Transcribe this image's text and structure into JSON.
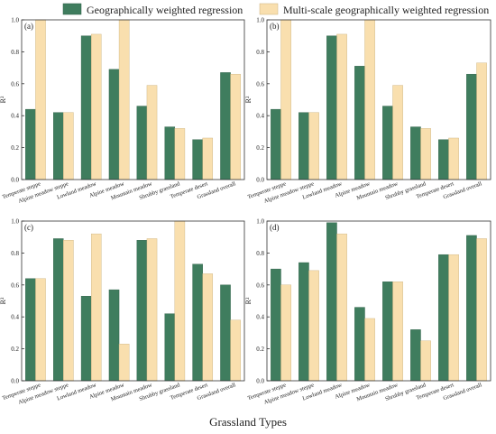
{
  "legend": {
    "items": [
      {
        "label": "Geographically weighted regression",
        "color": "#3f7d5e"
      },
      {
        "label": "Multi-scale geographically weighted regression",
        "color": "#f9dfae"
      }
    ]
  },
  "xlabel": "Grassland Types",
  "chart_data": [
    {
      "type": "bar",
      "panel_label": "(a)",
      "ylabel": "R²",
      "ylim": [
        0,
        1.0
      ],
      "yticks": [
        "0.0",
        "0.2",
        "0.4",
        "0.6",
        "0.8",
        "1.0"
      ],
      "categories": [
        "Temperate steppe",
        "Alpine meadow steppe",
        "Lowland meadow",
        "Alpine meadow",
        "Mountain meadow",
        "Shrubby grassland",
        "Temperate desert",
        "Grassland overall"
      ],
      "series": [
        {
          "name": "Geographically weighted regression",
          "values": [
            0.44,
            0.42,
            0.9,
            0.69,
            0.46,
            0.33,
            0.25,
            0.67
          ]
        },
        {
          "name": "Multi-scale geographically weighted regression",
          "values": [
            1.0,
            0.42,
            0.91,
            1.0,
            0.59,
            0.32,
            0.26,
            0.66
          ]
        }
      ]
    },
    {
      "type": "bar",
      "panel_label": "(b)",
      "ylabel": "R²",
      "ylim": [
        0,
        1.0
      ],
      "yticks": [
        "0.0",
        "0.2",
        "0.4",
        "0.6",
        "0.8",
        "1.0"
      ],
      "categories": [
        "Temperate steppe",
        "Alpine meadow steppe",
        "Lowland meadow",
        "Alpine meadow",
        "Mountain meadow",
        "Shrubby grassland",
        "Temperate desert",
        "Grassland overall"
      ],
      "series": [
        {
          "name": "Geographically weighted regression",
          "values": [
            0.44,
            0.42,
            0.9,
            0.71,
            0.46,
            0.33,
            0.25,
            0.66
          ]
        },
        {
          "name": "Multi-scale geographically weighted regression",
          "values": [
            1.0,
            0.42,
            0.91,
            1.0,
            0.59,
            0.32,
            0.26,
            0.73
          ]
        }
      ]
    },
    {
      "type": "bar",
      "panel_label": "(c)",
      "ylabel": "R²",
      "ylim": [
        0,
        1.0
      ],
      "yticks": [
        "0.0",
        "0.2",
        "0.4",
        "0.6",
        "0.8",
        "1.0"
      ],
      "categories": [
        "Temperate steppe",
        "Alpine meadow steppe",
        "Lowland meadow",
        "Alpine meadow",
        "Mountain meadow",
        "Shrubby grassland",
        "Temperate desert",
        "Grassland overall"
      ],
      "series": [
        {
          "name": "Geographically weighted regression",
          "values": [
            0.64,
            0.89,
            0.53,
            0.57,
            0.88,
            0.42,
            0.73,
            0.6
          ]
        },
        {
          "name": "Multi-scale geographically weighted regression",
          "values": [
            0.64,
            0.88,
            0.92,
            0.23,
            0.89,
            1.0,
            0.67,
            0.38
          ]
        }
      ]
    },
    {
      "type": "bar",
      "panel_label": "(d)",
      "ylabel": "R²",
      "ylim": [
        0,
        1.0
      ],
      "yticks": [
        "0.0",
        "0.2",
        "0.4",
        "0.6",
        "0.8",
        "1.0"
      ],
      "categories": [
        "Temperate steppe",
        "Alpine meadow steppe",
        "Lowland meadow",
        "Alpine meadow",
        "Mountain meadow",
        "Shrubby grassland",
        "Temperate desert",
        "Grassland overall"
      ],
      "series": [
        {
          "name": "Geographically weighted regression",
          "values": [
            0.7,
            0.74,
            0.99,
            0.46,
            0.62,
            0.32,
            0.79,
            0.91
          ]
        },
        {
          "name": "Multi-scale geographically weighted regression",
          "values": [
            0.6,
            0.69,
            0.92,
            0.39,
            0.62,
            0.25,
            0.79,
            0.89
          ]
        }
      ]
    }
  ]
}
